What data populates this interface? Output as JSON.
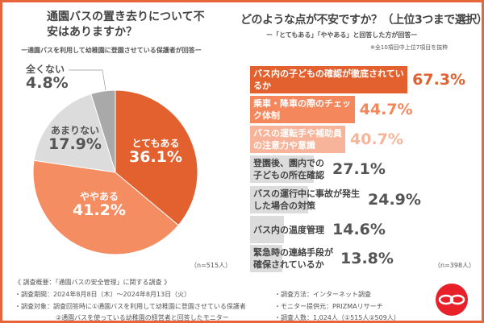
{
  "left": {
    "title": "通園バスの置き去りについて不安はありますか？",
    "subtitle": "ー通園バスを利用して幼稚園に登園させている保護者が回答ー",
    "n": "（n=515人）"
  },
  "right": {
    "title": "どのような点が不安ですか？（上位3つまで選択）",
    "subtitle": "ー「とてもある」「ややある」と回答した方が回答ー",
    "note": "※全10項目中上位7項目を抜粋",
    "n": "（n=398人）"
  },
  "chart_data": [
    {
      "type": "pie",
      "categories": [
        "とてもある",
        "ややある",
        "あまりない",
        "全くない"
      ],
      "values": [
        36.1,
        41.2,
        17.9,
        4.8
      ],
      "labels": [
        "36.1%",
        "41.2%",
        "17.9%",
        "4.8%"
      ],
      "colors": [
        "#e2612f",
        "#f58d63",
        "#dcdcdc",
        "#a9a9a9"
      ]
    },
    {
      "type": "bar",
      "orientation": "horizontal",
      "categories": [
        "バス内の子どもの確認が徹底されているか",
        "乗車・降車の際のチェック体制",
        "バスの運転手や補助員の注意力や意識",
        "登園後、園内での子どもの所在確認",
        "バスの運行中に事故が発生した場合の対策",
        "バス内の温度管理",
        "緊急時の連絡手段が確保されているか"
      ],
      "values": [
        67.3,
        44.7,
        40.7,
        27.1,
        24.9,
        14.6,
        13.8
      ],
      "labels": [
        "67.3%",
        "44.7%",
        "40.7%",
        "27.1%",
        "24.9%",
        "14.6%",
        "13.8%"
      ],
      "colors": [
        "#e2612f",
        "#f4875c",
        "#f8b49a",
        "#dcdcdc",
        "#dcdcdc",
        "#dcdcdc",
        "#dcdcdc"
      ]
    }
  ],
  "footer": {
    "overview": "《 調査概要：「通園バスの安全管理」に関する調査 》",
    "period": "・調査期間：2024年8月8日（木）〜2024年8月13日（火）",
    "target1": "・調査対象：調査回答時に①通園バスを利用して幼稚園に登園させている保護者",
    "target2": "②通園バスを使っている幼稚園の経営者と回答したモニター",
    "method": "・調査方法：インターネット調査",
    "provider": "・モニター提供元：PRIZMAリサーチ",
    "count": "・調査人数：1,024人（①515人②509人）"
  }
}
